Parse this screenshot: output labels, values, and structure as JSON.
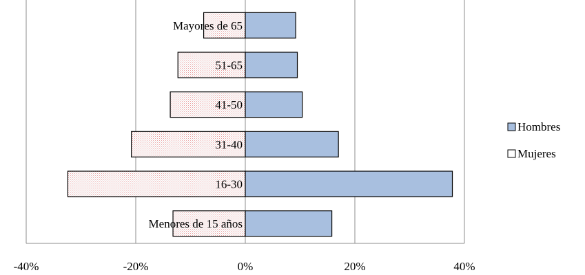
{
  "chart_data": {
    "type": "bar",
    "orientation": "horizontal",
    "categories": [
      "Menores de 15 años",
      "16-30",
      "31-40",
      "41-50",
      "51-65",
      "Mayores de 65"
    ],
    "series": [
      {
        "name": "Hombres",
        "values": [
          15.8,
          37.8,
          17.0,
          10.4,
          9.5,
          9.2
        ],
        "color": "#a8bfdf"
      },
      {
        "name": "Mujeres",
        "values": [
          -13.2,
          -32.4,
          -20.8,
          -13.7,
          -12.3,
          -7.6
        ],
        "color": "#ffffff",
        "pattern": "dotted-pink"
      }
    ],
    "xticks": [
      "-40%",
      "-20%",
      "0%",
      "20%",
      "40%"
    ],
    "xlim": [
      -40,
      40
    ],
    "grid": true,
    "legend_position": "right",
    "title": "",
    "xlabel": "",
    "ylabel": ""
  }
}
